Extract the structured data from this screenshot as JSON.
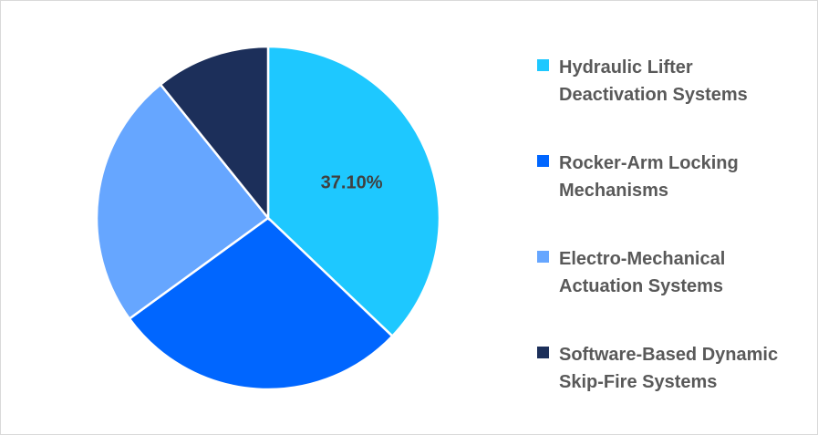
{
  "chart_data": {
    "type": "pie",
    "title": "",
    "start_angle": "top, clockwise",
    "legend_position": "right",
    "slices": [
      {
        "label": "Hydraulic Lifter Deactivation Systems",
        "value": 37.1,
        "color": "#1EC8FF",
        "data_label": "37.10%"
      },
      {
        "label": "Rocker-Arm Locking Mechanisms",
        "value": 27.9,
        "color": "#0066FF",
        "data_label": ""
      },
      {
        "label": "Electro-Mechanical Actuation Systems",
        "value": 24.2,
        "color": "#66A6FF",
        "data_label": ""
      },
      {
        "label": "Software-Based Dynamic Skip-Fire Systems",
        "value": 10.8,
        "color": "#1C2F5A",
        "data_label": ""
      }
    ]
  }
}
